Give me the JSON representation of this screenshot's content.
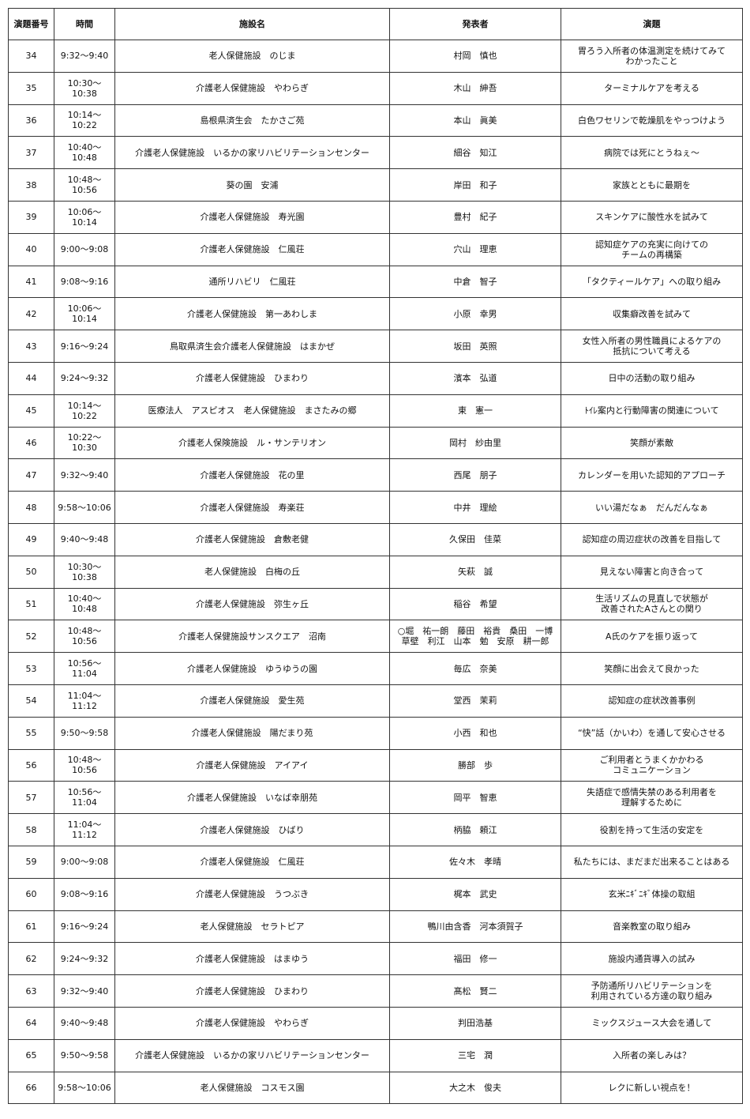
{
  "table": {
    "header": [
      "演題番号",
      "時間",
      "施設名",
      "発表者",
      "演題"
    ],
    "rows": [
      [
        "34",
        "9:32～9:40",
        "老人保健施設　のじま",
        "村岡　慎也",
        "胃ろう入所者の体温測定を続けてみて\nわかったこと"
      ],
      [
        "35",
        "10:30～10:38",
        "介護老人保健施設　やわらぎ",
        "木山　紳吾",
        "ターミナルケアを考える"
      ],
      [
        "36",
        "10:14～10:22",
        "島根県済生会　たかさご苑",
        "本山　眞美",
        "白色ワセリンで乾燥肌をやっつけよう"
      ],
      [
        "37",
        "10:40～10:48",
        "介護老人保健施設　いるかの家リハビリテーションセンター",
        "細谷　知江",
        "病院では死にとうねぇ～"
      ],
      [
        "38",
        "10:48～10:56",
        "葵の園　安浦",
        "岸田　和子",
        "家族とともに最期を"
      ],
      [
        "39",
        "10:06～10:14",
        "介護老人保健施設　寿光園",
        "豊村　紀子",
        "スキンケアに酸性水を試みて"
      ],
      [
        "40",
        "9:00～9:08",
        "介護老人保健施設　仁風荘",
        "穴山　理恵",
        "認知症ケアの充実に向けての\nチームの再構築"
      ],
      [
        "41",
        "9:08～9:16",
        "通所リハビリ　仁風荘",
        "中倉　智子",
        "「タクティールケア」への取り組み"
      ],
      [
        "42",
        "10:06～10:14",
        "介護老人保健施設　第一あわしま",
        "小原　幸男",
        "収集癖改善を試みて"
      ],
      [
        "43",
        "9:16～9:24",
        "鳥取県済生会介護老人保健施設　はまかぜ",
        "坂田　英照",
        "女性入所者の男性職員によるケアの\n抵抗について考える"
      ],
      [
        "44",
        "9:24～9:32",
        "介護老人保健施設　ひまわり",
        "濱本　弘道",
        "日中の活動の取り組み"
      ],
      [
        "45",
        "10:14～10:22",
        "医療法人　アスピオス　老人保健施設　まさたみの郷",
        "東　憲一",
        "ﾄｲﾚ案内と行動障害の関連について"
      ],
      [
        "46",
        "10:22～10:30",
        "介護老人保険施設　ル・サンテリオン",
        "岡村　紗由里",
        "笑顔が素敵"
      ],
      [
        "47",
        "9:32～9:40",
        "介護老人保健施設　花の里",
        "西尾　朋子",
        "カレンダーを用いた認知的アプローチ"
      ],
      [
        "48",
        "9:58～10:06",
        "介護老人保健施設　寿楽荘",
        "中井　理絵",
        "いい湯だなぁ　だんだんなぁ"
      ],
      [
        "49",
        "9:40～9:48",
        "介護老人保健施設　倉敷老健",
        "久保田　佳菜",
        "認知症の周辺症状の改善を目指して"
      ],
      [
        "50",
        "10:30～10:38",
        "老人保健施設　白梅の丘",
        "矢萩　誠",
        "見えない障害と向き合って"
      ],
      [
        "51",
        "10:40～10:48",
        "介護老人保健施設　弥生ヶ丘",
        "稲谷　希望",
        "生活リズムの見直しで状態が\n改善されたAさんとの関り"
      ],
      [
        "52",
        "10:48～10:56",
        "介護老人保健施設サンスクエア　沼南",
        "○堀　祐一朗　藤田　裕貴　桑田　一博\n草壁　利江　山本　勉　安原　耕一郎",
        "A氏のケアを振り返って"
      ],
      [
        "53",
        "10:56～11:04",
        "介護老人保健施設　ゆうゆうの園",
        "毎広　奈美",
        "笑顔に出会えて良かった"
      ],
      [
        "54",
        "11:04～11:12",
        "介護老人保健施設　愛生苑",
        "堂西　茉莉",
        "認知症の症状改善事例"
      ],
      [
        "55",
        "9:50～9:58",
        "介護老人保健施設　陽だまり苑",
        "小西　和也",
        "“快”話（かいわ）を通して安心させる"
      ],
      [
        "56",
        "10:48～10:56",
        "介護老人保健施設　アイアイ",
        "勝部　歩",
        "ご利用者とうまくかかわる\nコミュニケーション"
      ],
      [
        "57",
        "10:56～11:04",
        "介護老人保健施設　いなば幸朋苑",
        "岡平　智恵",
        "失語症で感情失禁のある利用者を\n理解するために"
      ],
      [
        "58",
        "11:04～11:12",
        "介護老人保健施設　ひばり",
        "柄脇　頼江",
        "役割を持って生活の安定を"
      ],
      [
        "59",
        "9:00～9:08",
        "介護老人保健施設　仁風荘",
        "佐々木　孝晴",
        "私たちには、まだまだ出来ることはある"
      ],
      [
        "60",
        "9:08～9:16",
        "介護老人保健施設　うつぶき",
        "梶本　武史",
        "玄米ﾆｷﾞﾆｷﾞ体操の取組"
      ],
      [
        "61",
        "9:16～9:24",
        "老人保健施設　セラトピア",
        "鴨川由含香　河本須賀子",
        "音楽教室の取り組み"
      ],
      [
        "62",
        "9:24～9:32",
        "介護老人保健施設　はまゆう",
        "福田　修一",
        "施設内通貨導入の試み"
      ],
      [
        "63",
        "9:32～9:40",
        "介護老人保健施設　ひまわり",
        "髙松　賢二",
        "予防通所リハビリテーションを\n利用されている方達の取り組み"
      ],
      [
        "64",
        "9:40～9:48",
        "介護老人保健施設　やわらぎ",
        "判田浩基",
        "ミックスジュース大会を通して"
      ],
      [
        "65",
        "9:50～9:58",
        "介護老人保健施設　いるかの家リハビリテーションセンター",
        "三宅　潤",
        "入所者の楽しみは？"
      ],
      [
        "66",
        "9:58～10:06",
        "老人保健施設　コスモス園",
        "大之木　俊夫",
        "レクに新しい視点を！"
      ]
    ]
  }
}
